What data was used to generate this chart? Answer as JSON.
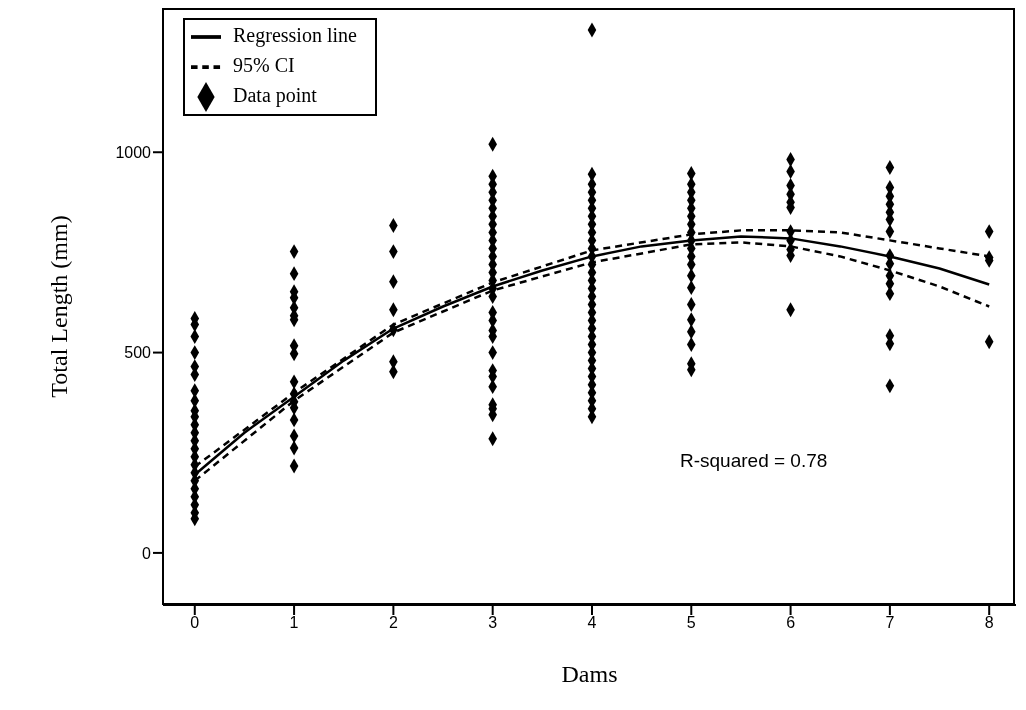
{
  "chart_data": {
    "type": "scatter",
    "xlabel": "Dams",
    "ylabel": "Total Length (mm)",
    "xlim": [
      -0.32,
      8.27
    ],
    "ylim": [
      -130,
      1360
    ],
    "xticks": [
      0,
      1,
      2,
      3,
      4,
      5,
      6,
      7,
      8
    ],
    "yticks": [
      0,
      500,
      1000
    ],
    "grid": false,
    "legend": "top left",
    "annotations": [
      "R-squared = 0.78"
    ],
    "series": [
      {
        "name": "Regression line",
        "type": "line",
        "line_style": "solid",
        "color": "#000000",
        "x": [
          0,
          0.5,
          1,
          1.5,
          2,
          2.5,
          3,
          3.5,
          4,
          4.5,
          5,
          5.5,
          6,
          6.5,
          7,
          7.5,
          8
        ],
        "values": [
          195,
          300,
          390,
          480,
          560,
          615,
          665,
          705,
          740,
          765,
          780,
          790,
          785,
          765,
          740,
          710,
          670
        ]
      },
      {
        "name": "95% CI",
        "type": "line",
        "line_style": "dashed",
        "color": "#000000",
        "x": [
          0,
          1,
          2,
          3,
          4,
          5,
          5.5,
          6,
          6.5,
          7,
          7.5,
          8
        ],
        "values": [
          215,
          400,
          570,
          675,
          755,
          795,
          805,
          805,
          800,
          780,
          760,
          740
        ]
      },
      {
        "type": "line",
        "line_style": "dashed",
        "color": "#000000",
        "x": [
          0,
          1,
          2,
          3,
          4,
          5,
          5.5,
          6,
          6.5,
          7,
          7.5,
          8
        ],
        "values": [
          180,
          380,
          550,
          655,
          725,
          770,
          775,
          765,
          740,
          705,
          665,
          615
        ]
      },
      {
        "name": "Data point",
        "color": "#000000",
        "marker": "diamond",
        "x": [
          0,
          0,
          0,
          0,
          0,
          0,
          0,
          0,
          0,
          0,
          0,
          0,
          0,
          0,
          0,
          0,
          0,
          0,
          0,
          0,
          0,
          0,
          0,
          1,
          1,
          1,
          1,
          1,
          1,
          1,
          1,
          1,
          1,
          1,
          1,
          1,
          1,
          1,
          1,
          1,
          2,
          2,
          2,
          2,
          2,
          2,
          2,
          3,
          3,
          3,
          3,
          3,
          3,
          3,
          3,
          3,
          3,
          3,
          3,
          3,
          3,
          3,
          3,
          3,
          3,
          3,
          3,
          3,
          3,
          3,
          3,
          3,
          3,
          3,
          3,
          3,
          4,
          4,
          4,
          4,
          4,
          4,
          4,
          4,
          4,
          4,
          4,
          4,
          4,
          4,
          4,
          4,
          4,
          4,
          4,
          4,
          4,
          4,
          4,
          4,
          4,
          4,
          4,
          4,
          4,
          4,
          4,
          4,
          5,
          5,
          5,
          5,
          5,
          5,
          5,
          5,
          5,
          5,
          5,
          5,
          5,
          5,
          5,
          5,
          5,
          5,
          5,
          5,
          6,
          6,
          6,
          6,
          6,
          6,
          6,
          6,
          6,
          6,
          6,
          7,
          7,
          7,
          7,
          7,
          7,
          7,
          7,
          7,
          7,
          7,
          7,
          7,
          7,
          7,
          8,
          8,
          8,
          8
        ],
        "values": [
          585,
          570,
          540,
          500,
          465,
          445,
          405,
          380,
          355,
          340,
          320,
          300,
          280,
          260,
          240,
          220,
          200,
          180,
          160,
          140,
          120,
          100,
          85,
          752,
          697,
          652,
          637,
          612,
          592,
          582,
          517,
          497,
          427,
          397,
          377,
          362,
          332,
          292,
          262,
          217,
          817,
          752,
          677,
          607,
          557,
          477,
          452,
          1020,
          940,
          920,
          900,
          880,
          860,
          840,
          820,
          800,
          780,
          760,
          740,
          720,
          700,
          680,
          660,
          640,
          600,
          580,
          555,
          540,
          500,
          455,
          440,
          415,
          370,
          360,
          345,
          285,
          1305,
          945,
          920,
          900,
          880,
          860,
          840,
          820,
          800,
          780,
          760,
          740,
          720,
          700,
          680,
          660,
          640,
          620,
          600,
          580,
          560,
          540,
          520,
          500,
          480,
          460,
          440,
          420,
          400,
          380,
          360,
          340,
          947,
          920,
          900,
          880,
          860,
          840,
          820,
          800,
          780,
          760,
          740,
          720,
          692,
          662,
          620,
          582,
          552,
          520,
          472,
          457,
          982,
          952,
          917,
          895,
          875,
          862,
          802,
          780,
          757,
          742,
          607,
          962,
          912,
          890,
          870,
          850,
          832,
          802,
          742,
          722,
          692,
          672,
          647,
          542,
          522,
          417,
          802,
          737,
          730,
          527
        ]
      }
    ]
  }
}
